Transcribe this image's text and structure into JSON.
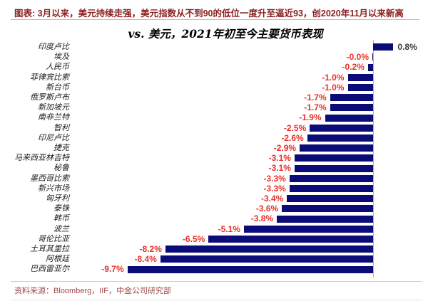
{
  "header": {
    "title": "图表: 3月以来，美元持续走强，美元指数从不到90的低位一度升至逼近93，创2020年11月以来新高",
    "color": "#8b1f1f"
  },
  "chart_data": {
    "type": "bar",
    "orientation": "horizontal",
    "title": "vs. 美元，2021年初至今主要货币表现",
    "xlabel": "",
    "ylabel": "",
    "unit": "%",
    "xlim": [
      -10.5,
      1.2
    ],
    "grid": false,
    "legend": "none",
    "categories": [
      "印度卢比",
      "埃及",
      "人民币",
      "菲律宾比索",
      "新台币",
      "俄罗斯卢布",
      "新加坡元",
      "南非兰特",
      "智利",
      "印尼卢比",
      "捷克",
      "马来西亚林吉特",
      "秘鲁",
      "墨西哥比索",
      "新兴市场",
      "匈牙利",
      "泰铢",
      "韩币",
      "波兰",
      "哥伦比亚",
      "土耳其里拉",
      "阿根廷",
      "巴西雷亚尔"
    ],
    "values": [
      0.8,
      -0.0,
      -0.2,
      -1.0,
      -1.0,
      -1.7,
      -1.7,
      -1.9,
      -2.5,
      -2.6,
      -2.9,
      -3.1,
      -3.1,
      -3.3,
      -3.3,
      -3.4,
      -3.6,
      -3.8,
      -5.1,
      -6.5,
      -8.2,
      -8.4,
      -9.7
    ],
    "value_labels": [
      "0.8%",
      "-0.0%",
      "-0.2%",
      "-1.0%",
      "-1.0%",
      "-1.7%",
      "-1.7%",
      "-1.9%",
      "-2.5%",
      "-2.6%",
      "-2.9%",
      "-3.1%",
      "-3.1%",
      "-3.3%",
      "-3.3%",
      "-3.4%",
      "-3.6%",
      "-3.8%",
      "-5.1%",
      "-6.5%",
      "-8.2%",
      "-8.4%",
      "-9.7%"
    ],
    "bar_color": "#0c0c78",
    "negative_label_color": "#e8312a",
    "positive_label_color": "#3c3c3c",
    "axis_line_color": "#b3b3b3"
  },
  "footer": {
    "source": "资料来源：Bloomberg，IIF，中金公司研究部",
    "color": "#a04848"
  }
}
